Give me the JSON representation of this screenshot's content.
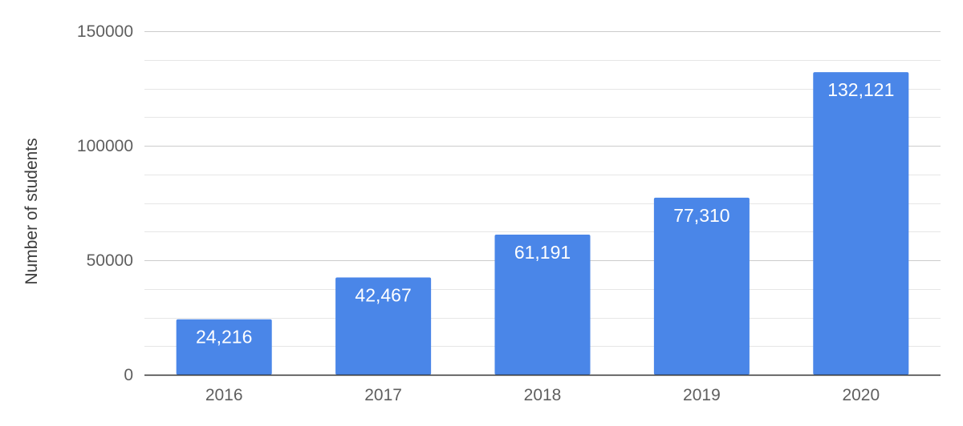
{
  "chart_data": {
    "type": "bar",
    "title": "",
    "xlabel": "",
    "ylabel": "Number of students",
    "categories": [
      "2016",
      "2017",
      "2018",
      "2019",
      "2020"
    ],
    "values": [
      24216,
      42467,
      61191,
      77310,
      132121
    ],
    "data_labels": [
      "24,216",
      "42,467",
      "61,191",
      "77,310",
      "132,121"
    ],
    "ylim": [
      0,
      150000
    ],
    "yticks": [
      0,
      50000,
      100000,
      150000
    ],
    "ytick_labels": [
      "0",
      "50000",
      "100000",
      "150000"
    ],
    "minor_gridlines_per_major": 3,
    "grid": true,
    "legend": "none",
    "bar_color": "#4a86e8",
    "major_grid_color": "#cccccc",
    "minor_grid_color": "#e6e6e6",
    "baseline_color": "#333333"
  }
}
